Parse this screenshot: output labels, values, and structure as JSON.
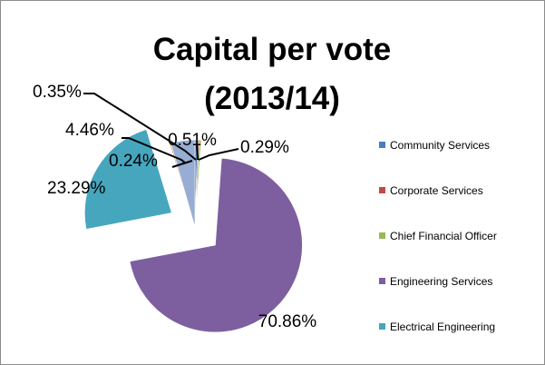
{
  "chart_data": {
    "type": "pie",
    "title": "Capital per vote (2013/14)",
    "title_lines": [
      "Capital per vote",
      "(2013/14)"
    ],
    "legend_position": "right",
    "series": [
      {
        "name": "Community Services",
        "value": 0.51,
        "label": "0.51%",
        "color": "#4a7ebb",
        "exploded": false
      },
      {
        "name": "Corporate Services",
        "value": 0.29,
        "label": "0.29%",
        "color": "#be4b48",
        "exploded": false
      },
      {
        "name": "Chief Financial Officer",
        "value": 0.35,
        "label": "0.35%",
        "color": "#98b954",
        "exploded": false
      },
      {
        "name": "Engineering Services",
        "value": 70.86,
        "label": "70.86%",
        "color": "#7d5fa0",
        "exploded": true
      },
      {
        "name": "Electrical Engineering",
        "value": 23.29,
        "label": "23.29%",
        "color": "#46a6be",
        "exploded": true
      },
      {
        "name": "",
        "value": 0.24,
        "label": "0.24%",
        "color": "#e6914b",
        "exploded": false
      },
      {
        "name": "",
        "value": 4.46,
        "label": "4.46%",
        "color": "#97add3",
        "exploded": false
      }
    ]
  }
}
